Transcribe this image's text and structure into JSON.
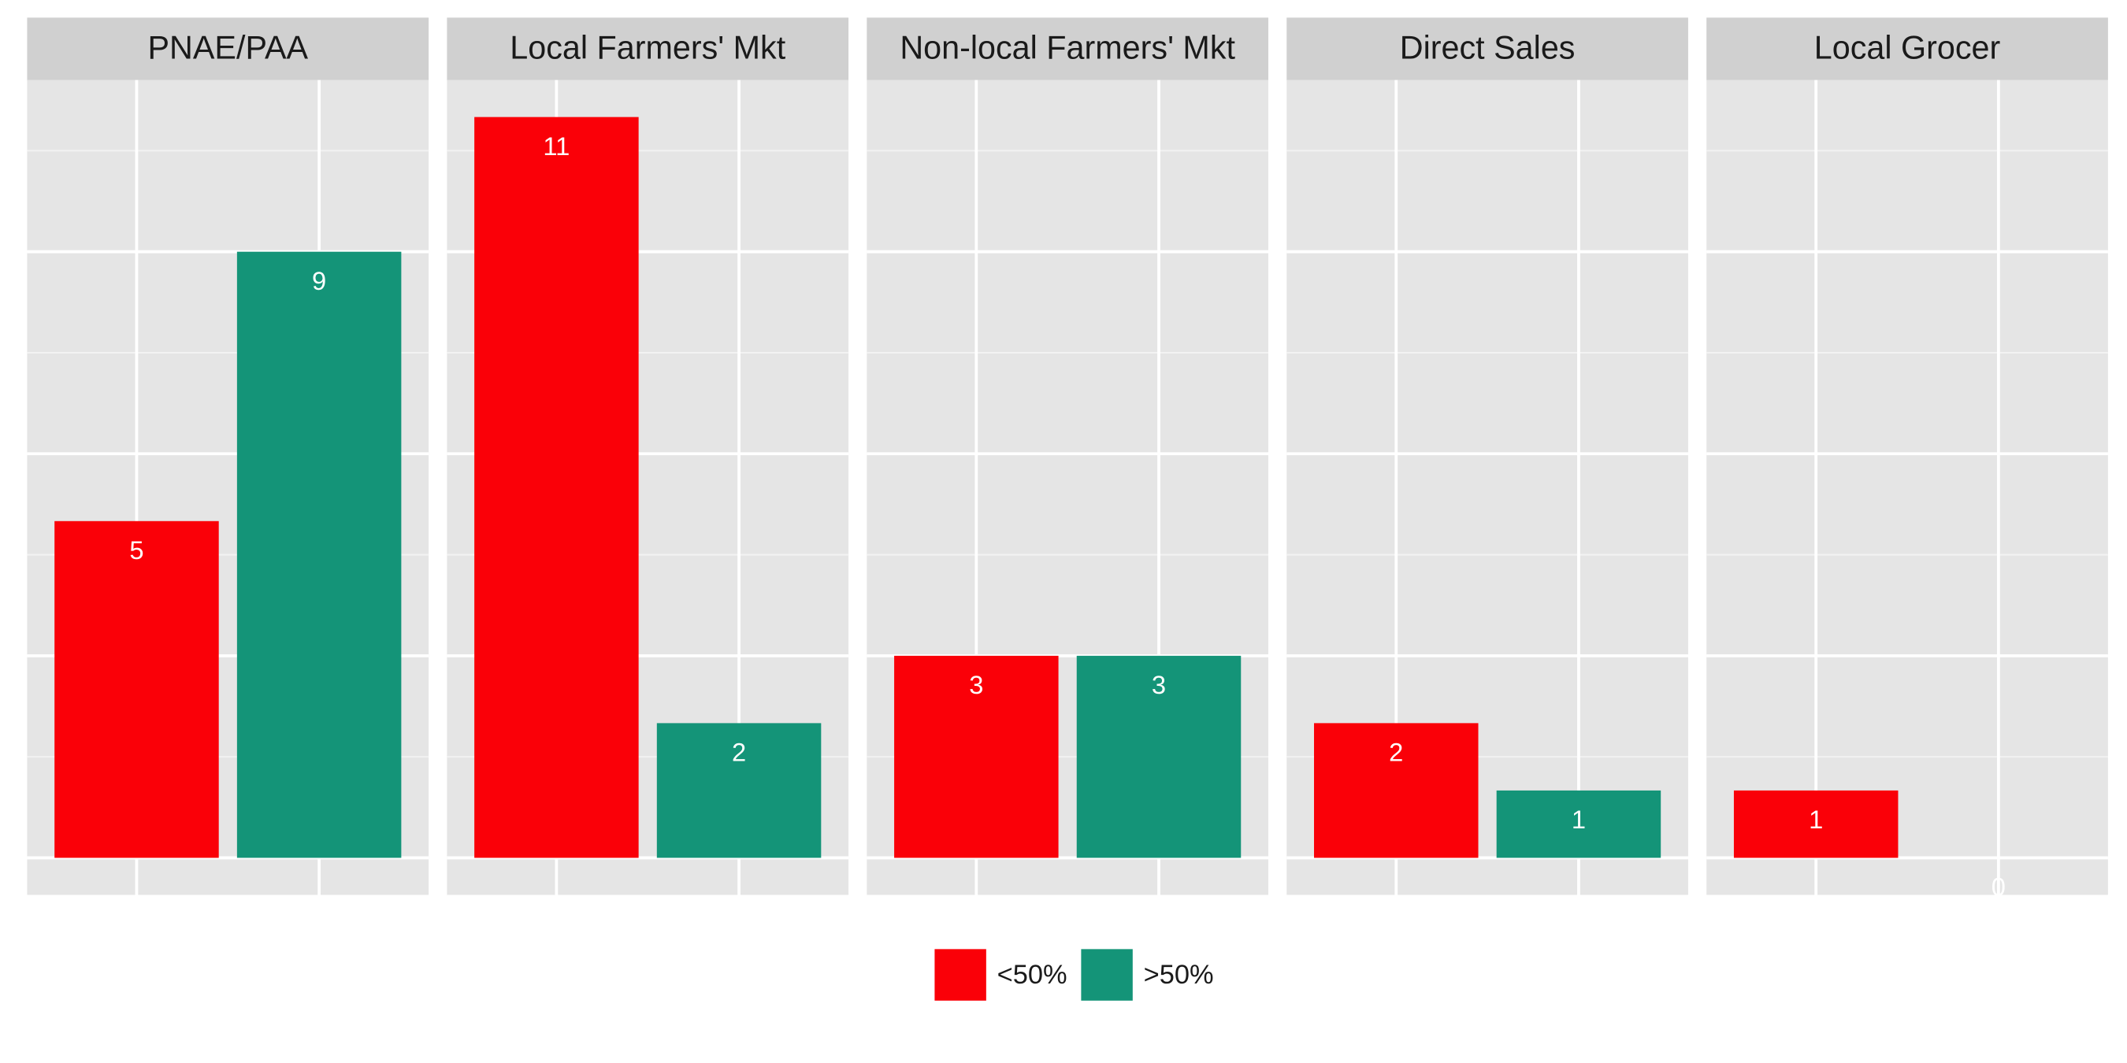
{
  "chart_data": {
    "type": "bar",
    "facets": [
      "PNAE/PAA",
      "Local Farmers' Mkt",
      "Non-local Farmers' Mkt",
      "Direct Sales",
      "Local Grocer"
    ],
    "series": [
      {
        "name": "<50%",
        "color": "#fa0008",
        "values": [
          5,
          11,
          3,
          2,
          1
        ]
      },
      {
        "name": ">50%",
        "color": "#149478",
        "values": [
          9,
          2,
          3,
          1,
          0
        ]
      }
    ],
    "ylim": [
      -0.55,
      11.55
    ],
    "yticks": [
      0,
      3,
      6,
      9
    ],
    "grid": true,
    "legend": "bottom"
  }
}
